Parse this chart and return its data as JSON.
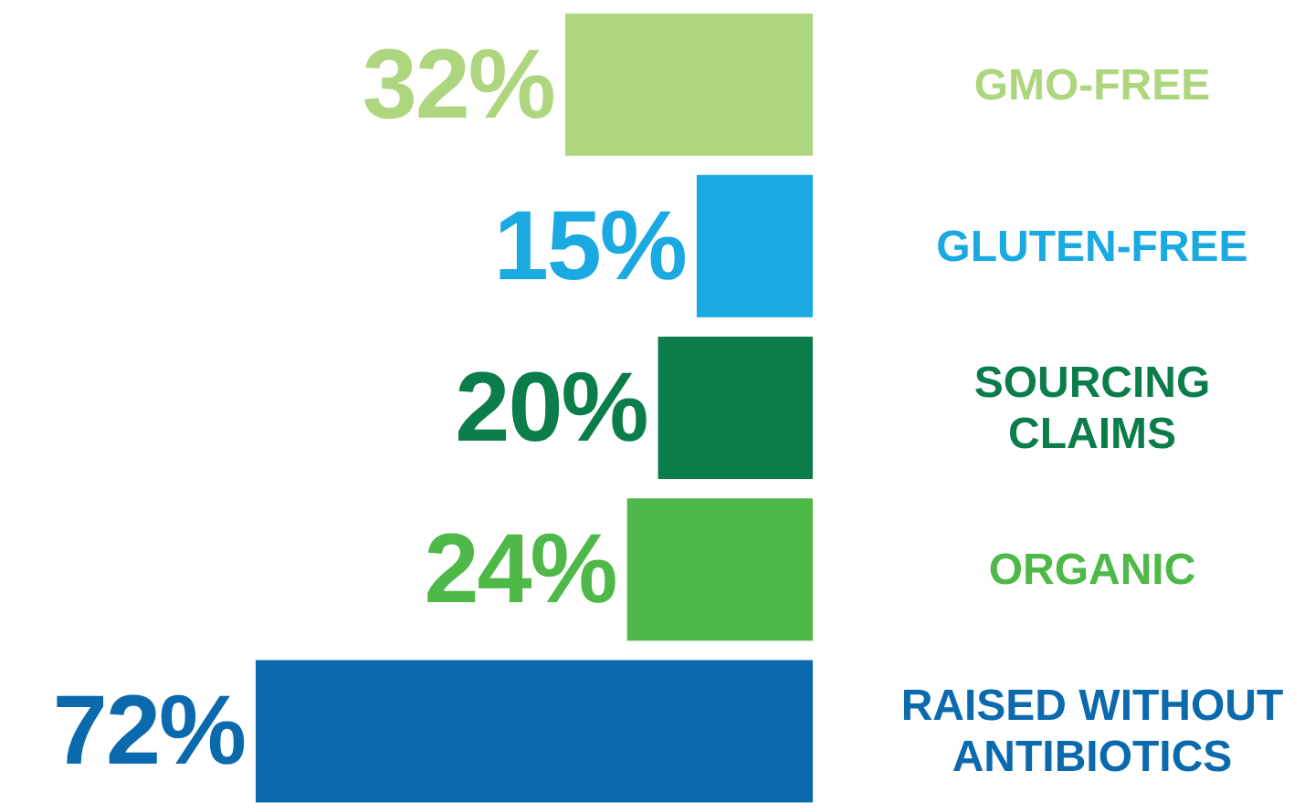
{
  "chart_data": {
    "type": "bar",
    "orientation": "horizontal",
    "categories": [
      "GMO-FREE",
      "GLUTEN-FREE",
      "SOURCING CLAIMS",
      "ORGANIC",
      "RAISED WITHOUT ANTIBIOTICS"
    ],
    "values": [
      32,
      15,
      20,
      24,
      72
    ],
    "value_labels": [
      "32%",
      "15%",
      "20%",
      "24%",
      "72%"
    ],
    "colors": [
      "#aed67e",
      "#1ba9e1",
      "#0b7d4b",
      "#4eb848",
      "#0b69ad"
    ]
  }
}
